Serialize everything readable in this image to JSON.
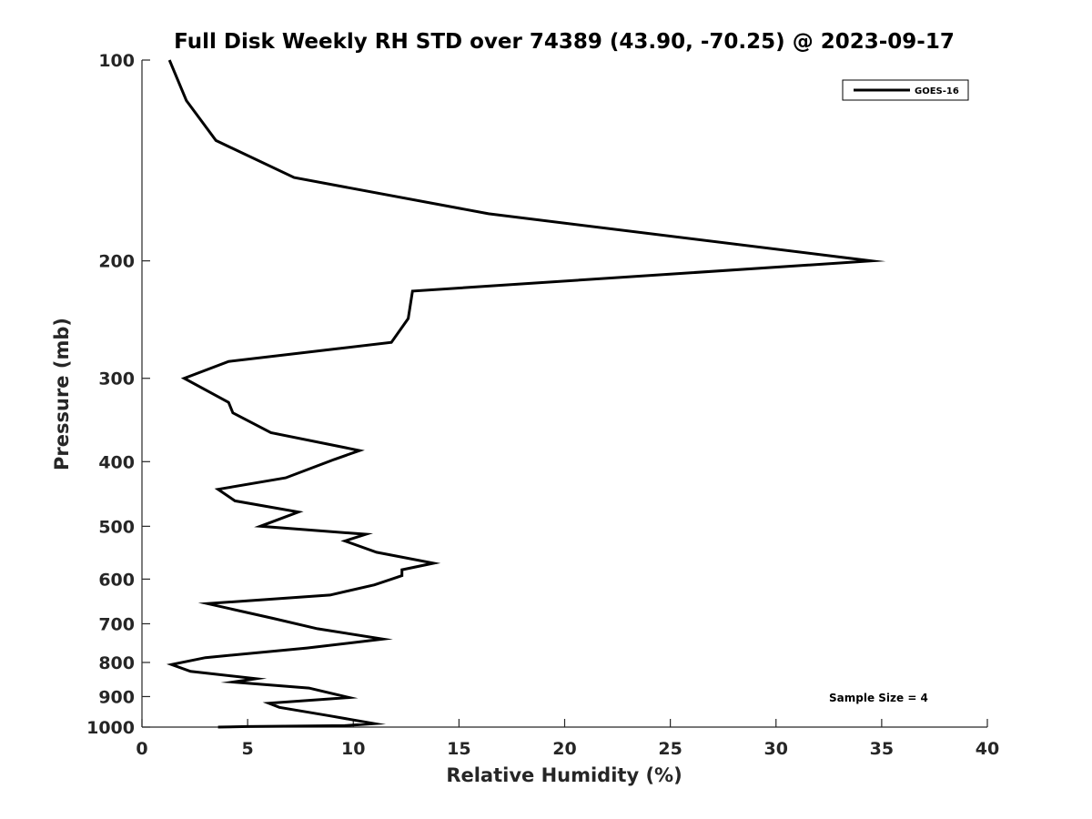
{
  "chart_data": {
    "type": "line",
    "title": "Full Disk Weekly RH STD over 74389 (43.90, -70.25) @ 2023-09-17",
    "xlabel": "Relative Humidity (%)",
    "ylabel": "Pressure (mb)",
    "xlim": [
      0,
      40
    ],
    "ylim": [
      100,
      1000
    ],
    "yscale": "log",
    "y_reversed": true,
    "x_ticks": [
      "0",
      "5",
      "10",
      "15",
      "20",
      "25",
      "30",
      "35",
      "40"
    ],
    "y_ticks": [
      "100",
      "200",
      "300",
      "400",
      "500",
      "600",
      "700",
      "800",
      "900",
      "1000"
    ],
    "legend": {
      "position": "top-right",
      "entries": [
        "GOES-16"
      ]
    },
    "annotation": "Sample Size = 4",
    "line_color": "#000000",
    "series": [
      {
        "name": "GOES-16",
        "x": [
          1.3,
          2.1,
          3.5,
          7.2,
          16.4,
          34.5,
          12.8,
          12.6,
          11.8,
          4.1,
          2.0,
          4.1,
          4.3,
          6.1,
          10.3,
          9.1,
          6.8,
          3.6,
          4.4,
          7.4,
          5.6,
          10.6,
          9.6,
          11.1,
          13.8,
          12.3,
          12.3,
          11.0,
          8.9,
          3.1,
          6.2,
          8.3,
          11.4,
          7.8,
          3.0,
          1.4,
          2.3,
          5.4,
          4.3,
          7.9,
          9.8,
          6.0,
          6.5,
          8.9,
          11.0,
          9.6,
          5.0,
          3.6
        ],
        "y": [
          100,
          115,
          132,
          150,
          170,
          200,
          222,
          244,
          265,
          283,
          300,
          326,
          338,
          362,
          385,
          397,
          423,
          440,
          458,
          476,
          500,
          514,
          526,
          547,
          568,
          581,
          593,
          612,
          634,
          653,
          687,
          712,
          738,
          761,
          787,
          806,
          825,
          846,
          856,
          874,
          903,
          921,
          934,
          962,
          988,
          995,
          998,
          1000
        ]
      }
    ]
  }
}
